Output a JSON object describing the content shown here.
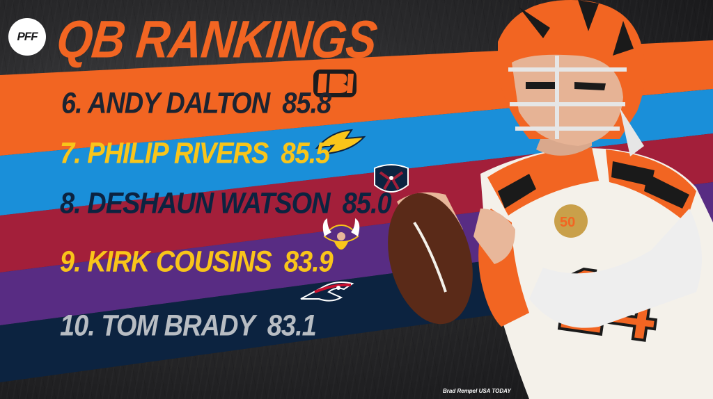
{
  "brand": {
    "logo_text": "PFF"
  },
  "title": "QB RANKINGS",
  "rankings": [
    {
      "label": "6. ANDY DALTON",
      "score": "85.8",
      "team": "Bengals",
      "icon": "bengals-logo-icon",
      "bar_color": "#f26522",
      "text_color": "#1c2431"
    },
    {
      "label": "7. PHILIP RIVERS",
      "score": "85.5",
      "team": "Chargers",
      "icon": "chargers-bolt-icon",
      "bar_color": "#1a8fd9",
      "text_color": "#f9c51a"
    },
    {
      "label": "8. DESHAUN WATSON",
      "score": "85.0",
      "team": "Texans",
      "icon": "texans-logo-icon",
      "bar_color": "#a31f3a",
      "text_color": "#0c2340"
    },
    {
      "label": "9. KIRK COUSINS",
      "score": "83.9",
      "team": "Vikings",
      "icon": "vikings-logo-icon",
      "bar_color": "#582c83",
      "text_color": "#f9c51a"
    },
    {
      "label": "10. TOM BRADY",
      "score": "83.1",
      "team": "Patriots",
      "icon": "patriots-logo-icon",
      "bar_color": "#0c2340",
      "text_color": "#b8bdc3"
    }
  ],
  "photo_credit": "Brad Rempel USA TODAY"
}
